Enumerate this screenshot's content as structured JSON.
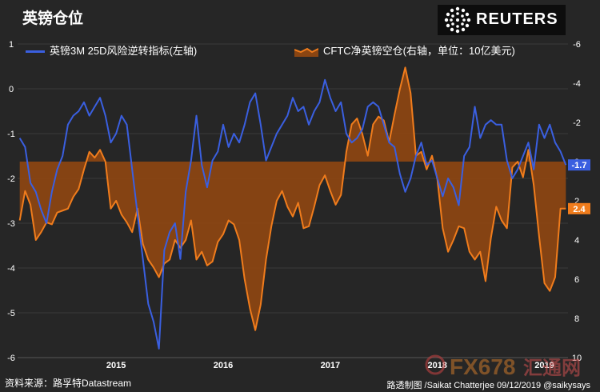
{
  "title": "英镑仓位",
  "brand": {
    "name": "REUTERS",
    "logo_icon": "reuters-dot-logo-icon"
  },
  "footer": {
    "source": "资料来源：路孚特Datastream",
    "credit": "路透制图  /Saikat Chatterjee 09/12/2019 @saikysays"
  },
  "watermark": {
    "text": "FX678",
    "suffix": "汇通网",
    "icon": "fx678-logo-icon"
  },
  "colors": {
    "blue": "#3a5fe0",
    "orange": "#f07c1c",
    "fill": "#8a4512",
    "background": "#262626"
  },
  "chart_data": {
    "type": "line",
    "x_ticks": [
      "2015",
      "2016",
      "2017",
      "2018",
      "2019"
    ],
    "left_axis": {
      "ticks": [
        "1",
        "0",
        "-1",
        "-2",
        "-3",
        "-4",
        "-5",
        "-6"
      ],
      "ylim": [
        -6,
        1
      ]
    },
    "right_axis": {
      "ticks": [
        "-6",
        "-4",
        "-2",
        "0",
        "2",
        "4",
        "6",
        "8",
        "10"
      ],
      "ylim": [
        10,
        -6
      ],
      "inverted": true
    },
    "series": [
      {
        "name": "英镑3M 25D风险逆转指标(左轴)",
        "axis": "left",
        "color": "#3a5fe0",
        "end_label": "-1.7",
        "x": [
          2014.6,
          2014.65,
          2014.7,
          2014.75,
          2014.8,
          2014.85,
          2014.9,
          2014.95,
          2015.0,
          2015.05,
          2015.1,
          2015.15,
          2015.2,
          2015.25,
          2015.3,
          2015.35,
          2015.4,
          2015.45,
          2015.5,
          2015.55,
          2015.6,
          2015.65,
          2015.7,
          2015.75,
          2015.8,
          2015.85,
          2015.9,
          2015.95,
          2016.0,
          2016.05,
          2016.1,
          2016.15,
          2016.2,
          2016.25,
          2016.3,
          2016.35,
          2016.4,
          2016.45,
          2016.5,
          2016.55,
          2016.6,
          2016.65,
          2016.7,
          2016.75,
          2016.8,
          2016.85,
          2016.9,
          2016.95,
          2017.0,
          2017.05,
          2017.1,
          2017.15,
          2017.2,
          2017.25,
          2017.3,
          2017.35,
          2017.4,
          2017.45,
          2017.5,
          2017.55,
          2017.6,
          2017.65,
          2017.7,
          2017.75,
          2017.8,
          2017.85,
          2017.9,
          2017.95,
          2018.0,
          2018.05,
          2018.1,
          2018.15,
          2018.2,
          2018.25,
          2018.3,
          2018.35,
          2018.4,
          2018.45,
          2018.5,
          2018.55,
          2018.6,
          2018.65,
          2018.7,
          2018.75,
          2018.8,
          2018.85,
          2018.9,
          2018.95,
          2019.0,
          2019.05,
          2019.1,
          2019.15,
          2019.2,
          2019.25,
          2019.3,
          2019.35,
          2019.4,
          2019.45,
          2019.5,
          2019.55,
          2019.6,
          2019.65,
          2019.7
        ],
        "values": [
          -1.1,
          -1.3,
          -2.1,
          -2.3,
          -2.7,
          -3.0,
          -2.3,
          -1.8,
          -1.5,
          -0.8,
          -0.6,
          -0.5,
          -0.3,
          -0.6,
          -0.4,
          -0.2,
          -0.6,
          -1.2,
          -1.0,
          -0.6,
          -0.8,
          -1.8,
          -2.8,
          -3.8,
          -4.8,
          -5.2,
          -5.8,
          -3.6,
          -3.2,
          -3.0,
          -3.8,
          -2.3,
          -1.6,
          -0.6,
          -1.7,
          -2.2,
          -1.6,
          -1.4,
          -0.8,
          -1.3,
          -1.0,
          -1.2,
          -0.8,
          -0.3,
          -0.1,
          -0.8,
          -1.6,
          -1.3,
          -1.0,
          -0.8,
          -0.6,
          -0.2,
          -0.5,
          -0.4,
          -0.8,
          -0.5,
          -0.3,
          0.2,
          -0.2,
          -0.5,
          -0.3,
          -1.0,
          -1.2,
          -1.1,
          -0.9,
          -0.4,
          -0.3,
          -0.4,
          -0.8,
          -1.2,
          -1.3,
          -1.9,
          -2.3,
          -2.0,
          -1.5,
          -1.2,
          -1.7,
          -1.6,
          -2.0,
          -2.4,
          -2.0,
          -2.2,
          -2.6,
          -1.5,
          -1.3,
          -0.4,
          -1.1,
          -0.8,
          -0.7,
          -0.8,
          -0.8,
          -1.6,
          -2.0,
          -1.8,
          -1.5,
          -1.2,
          -1.8,
          -0.8,
          -1.1,
          -0.8,
          -1.2,
          -1.4,
          -1.7
        ]
      },
      {
        "name": "CFTC净英镑空仓(右轴，单位：10亿美元)",
        "axis": "right",
        "color": "#f07c1c",
        "end_label": "2.4",
        "x": [
          2014.6,
          2014.65,
          2014.7,
          2014.75,
          2014.8,
          2014.85,
          2014.9,
          2014.95,
          2015.0,
          2015.05,
          2015.1,
          2015.15,
          2015.2,
          2015.25,
          2015.3,
          2015.35,
          2015.4,
          2015.45,
          2015.5,
          2015.55,
          2015.6,
          2015.65,
          2015.7,
          2015.75,
          2015.8,
          2015.85,
          2015.9,
          2015.95,
          2016.0,
          2016.05,
          2016.1,
          2016.15,
          2016.2,
          2016.25,
          2016.3,
          2016.35,
          2016.4,
          2016.45,
          2016.5,
          2016.55,
          2016.6,
          2016.65,
          2016.7,
          2016.75,
          2016.8,
          2016.85,
          2016.9,
          2016.95,
          2017.0,
          2017.05,
          2017.1,
          2017.15,
          2017.2,
          2017.25,
          2017.3,
          2017.35,
          2017.4,
          2017.45,
          2017.5,
          2017.55,
          2017.6,
          2017.65,
          2017.7,
          2017.75,
          2017.8,
          2017.85,
          2017.9,
          2017.95,
          2018.0,
          2018.05,
          2018.1,
          2018.15,
          2018.2,
          2018.25,
          2018.3,
          2018.35,
          2018.4,
          2018.45,
          2018.5,
          2018.55,
          2018.6,
          2018.65,
          2018.7,
          2018.75,
          2018.8,
          2018.85,
          2018.9,
          2018.95,
          2019.0,
          2019.05,
          2019.1,
          2019.15,
          2019.2,
          2019.25,
          2019.3,
          2019.35,
          2019.4,
          2019.45,
          2019.5,
          2019.55,
          2019.6,
          2019.65,
          2019.7
        ],
        "values": [
          3.0,
          1.5,
          2.2,
          4.0,
          3.6,
          3.1,
          3.2,
          2.6,
          2.5,
          2.4,
          1.8,
          1.4,
          0.4,
          -0.5,
          -0.2,
          -0.6,
          0.0,
          2.4,
          2.0,
          2.7,
          3.1,
          3.6,
          2.4,
          4.2,
          5.0,
          5.4,
          5.9,
          5.2,
          5.0,
          4.0,
          4.4,
          4.0,
          3.0,
          5.0,
          4.6,
          5.3,
          5.1,
          4.1,
          3.7,
          3.0,
          3.2,
          4.0,
          6.0,
          7.5,
          8.6,
          7.3,
          5.0,
          3.3,
          2.0,
          1.5,
          2.3,
          2.8,
          2.1,
          3.4,
          3.3,
          2.3,
          1.2,
          0.7,
          1.5,
          2.2,
          1.7,
          -0.5,
          -1.9,
          -2.2,
          -1.4,
          -0.3,
          -1.9,
          -2.3,
          -2.1,
          -1.0,
          -2.4,
          -3.7,
          -4.8,
          -3.5,
          -0.3,
          -0.5,
          0.4,
          -0.3,
          0.9,
          3.4,
          4.6,
          4.0,
          3.3,
          3.4,
          4.6,
          5.0,
          4.6,
          6.1,
          3.9,
          2.3,
          3.0,
          3.4,
          0.3,
          0.0,
          0.8,
          -0.6,
          1.2,
          3.8,
          6.2,
          6.6,
          5.9,
          2.4,
          2.4
        ]
      }
    ],
    "baseline": {
      "axis": "right",
      "value": 0
    }
  }
}
